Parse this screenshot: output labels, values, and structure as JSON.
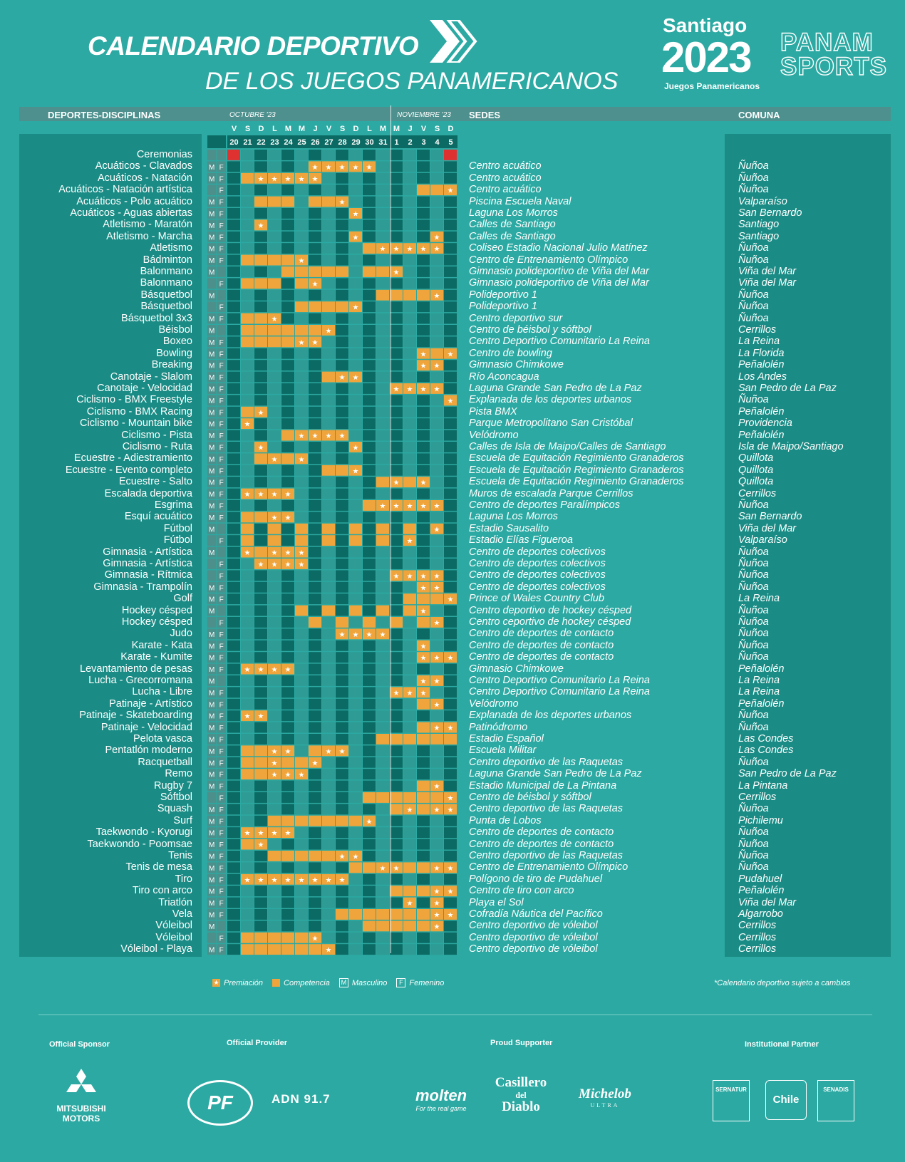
{
  "title": {
    "line1": "CALENDARIO DEPORTIVO",
    "line2": "DE LOS JUEGOS PANAMERICANOS"
  },
  "brand": {
    "city": "Santiago",
    "year": "2023",
    "subtitle": "Juegos Panamericanos",
    "partner_line1": "PANAM",
    "partner_line2": "SPORTS"
  },
  "header": {
    "sports": "DEPORTES-DISCIPLINAS",
    "oct": "OCTUBRE '23",
    "nov": "NOVIEMBRE '23",
    "venues": "SEDES",
    "commune": "COMUNA"
  },
  "days": [
    "V",
    "S",
    "D",
    "L",
    "M",
    "M",
    "J",
    "V",
    "S",
    "D",
    "L",
    "M",
    "M",
    "J",
    "V",
    "S",
    "D"
  ],
  "dates": [
    "20",
    "21",
    "22",
    "23",
    "24",
    "25",
    "26",
    "27",
    "28",
    "29",
    "30",
    "31",
    "1",
    "2",
    "3",
    "4",
    "5"
  ],
  "colors": {
    "background": "#2ba9a2",
    "dark": "#0b6a63",
    "light": "#2e9c95",
    "competition": "#f0a43c",
    "ceremony": "#e03131"
  },
  "rows": [
    {
      "sport": "Ceremonias",
      "g": "",
      "venue": "",
      "commune": "",
      "c": "00000000000000000",
      "ceremony": [
        0,
        16
      ]
    },
    {
      "sport": "Acuáticos - Clavados",
      "g": "MF",
      "venue": "Centro acuático",
      "commune": "Ñuñoa",
      "c": "00000022222000000"
    },
    {
      "sport": "Acuáticos - Natación",
      "g": "MF",
      "venue": "Centro acuático",
      "commune": "Ñuñoa",
      "c": "01222220000000000"
    },
    {
      "sport": "Acuáticos - Natación artística",
      "g": "F",
      "venue": "Centro acuático",
      "commune": "Ñuñoa",
      "c": "00000000000000112"
    },
    {
      "sport": "Acuáticos - Polo acuático",
      "g": "MF",
      "venue": "Piscina Escuela Naval",
      "commune": "Valparaíso",
      "c": "00111011200000000"
    },
    {
      "sport": "Acuáticos - Aguas abiertas",
      "g": "MF",
      "venue": "Laguna Los Morros",
      "commune": "San Bernardo",
      "c": "00000000020000000"
    },
    {
      "sport": "Atletismo - Maratón",
      "g": "MF",
      "venue": "Calles de Santiago",
      "commune": "Santiago",
      "c": "00200000000000000"
    },
    {
      "sport": "Atletismo - Marcha",
      "g": "MF",
      "venue": "Calles de Santiago",
      "commune": "Santiago",
      "c": "00000000020000020"
    },
    {
      "sport": "Atletismo",
      "g": "MF",
      "venue": "Coliseo Estadio Nacional Julio Matínez",
      "commune": "Ñuñoa",
      "c": "00000000001222220"
    },
    {
      "sport": "Bádminton",
      "g": "MF",
      "venue": "Centro de Entrenamiento Olímpico",
      "commune": "Ñuñoa",
      "c": "01111200000000000"
    },
    {
      "sport": "Balonmano",
      "g": "M",
      "venue": "Gimnasio polideportivo de Viña del Mar",
      "commune": "Viña del Mar",
      "c": "00001111101120000"
    },
    {
      "sport": "Balonmano",
      "g": "F",
      "venue": "Gimnasio polideportivo de Viña del Mar",
      "commune": "Viña del Mar",
      "c": "01110120000000000"
    },
    {
      "sport": "Básquetbol",
      "g": "M",
      "venue": "Polideportivo 1",
      "commune": "Ñuñoa",
      "c": "00000000000111120"
    },
    {
      "sport": "Básquetbol",
      "g": "F",
      "venue": "Polideportivo 1",
      "commune": "Ñuñoa",
      "c": "00000111120000000"
    },
    {
      "sport": "Básquetbol 3x3",
      "g": "MF",
      "venue": "Centro deportivo sur",
      "commune": "Ñuñoa",
      "c": "01120000000000000"
    },
    {
      "sport": "Béisbol",
      "g": "M",
      "venue": "Centro de béisbol y sóftbol",
      "commune": "Cerrillos",
      "c": "01111112000000000"
    },
    {
      "sport": "Boxeo",
      "g": "MF",
      "venue": "Centro Deportivo Comunitario La Reina",
      "commune": "La Reina",
      "c": "01111220000000000"
    },
    {
      "sport": "Bowling",
      "g": "MF",
      "venue": "Centro de bowling",
      "commune": "La Florida",
      "c": "00000000000000212"
    },
    {
      "sport": "Breaking",
      "g": "MF",
      "venue": "Gimnasio Chimkowe",
      "commune": "Peñalolén",
      "c": "00000000000000220"
    },
    {
      "sport": "Canotaje - Slalom",
      "g": "MF",
      "venue": "Río Aconcagua",
      "commune": "Los Andes",
      "c": "00000001220000000"
    },
    {
      "sport": "Canotaje - Velocidad",
      "g": "MF",
      "venue": "Laguna Grande San Pedro de La Paz",
      "commune": "San Pedro de La Paz",
      "c": "00000000000022220"
    },
    {
      "sport": "Ciclismo - BMX Freestyle",
      "g": "MF",
      "venue": "Explanada de los deportes urbanos",
      "commune": "Ñuñoa",
      "c": "00000000000000002"
    },
    {
      "sport": "Ciclismo - BMX Racing",
      "g": "MF",
      "venue": "Pista BMX",
      "commune": "Peñalolén",
      "c": "01200000000000000"
    },
    {
      "sport": "Ciclismo - Mountain bike",
      "g": "MF",
      "venue": "Parque Metropolitano San Cristóbal",
      "commune": "Providencia",
      "c": "02000000000000000"
    },
    {
      "sport": "Ciclismo - Pista",
      "g": "MF",
      "venue": "Velódromo",
      "commune": "Peñalolén",
      "c": "00001222200000000"
    },
    {
      "sport": "Ciclismo - Ruta",
      "g": "MF",
      "venue": "Calles de Isla de Maipo/Calles de Santiago",
      "commune": "Isla de Maipo/Santiago",
      "c": "00200000020000000"
    },
    {
      "sport": "Ecuestre - Adiestramiento",
      "g": "MF",
      "venue": "Escuela de Equitación Regimiento Granaderos",
      "commune": "Quillota",
      "c": "00121200000000000"
    },
    {
      "sport": "Ecuestre - Evento completo",
      "g": "MF",
      "venue": "Escuela de Equitación Regimiento Granaderos",
      "commune": "Quillota",
      "c": "00000001120000000"
    },
    {
      "sport": "Ecuestre - Salto",
      "g": "MF",
      "venue": "Escuela de Equitación Regimiento Granaderos",
      "commune": "Quillota",
      "c": "00000000000121200"
    },
    {
      "sport": "Escalada deportiva",
      "g": "MF",
      "venue": "Muros de escalada Parque Cerrillos",
      "commune": "Cerrillos",
      "c": "02222000000000000"
    },
    {
      "sport": "Esgrima",
      "g": "MF",
      "venue": "Centro de deportes Paralímpicos",
      "commune": "Ñuñoa",
      "c": "00000000001222220"
    },
    {
      "sport": "Esquí acuático",
      "g": "MF",
      "venue": "Laguna Los Morros",
      "commune": "San Bernardo",
      "c": "01122000000000000"
    },
    {
      "sport": "Fútbol",
      "g": "M",
      "venue": "Estadio Sausalito",
      "commune": "Viña del Mar",
      "c": "01010101010101020"
    },
    {
      "sport": "Fútbol",
      "g": "F",
      "venue": "Estadio Elías Figueroa",
      "commune": "Valparaíso",
      "c": "01010101010102000"
    },
    {
      "sport": "Gimnasia - Artística",
      "g": "M",
      "venue": "Centro de deportes colectivos",
      "commune": "Ñuñoa",
      "c": "02122200000000000"
    },
    {
      "sport": "Gimnasia - Artística",
      "g": "F",
      "venue": "Centro de deportes colectivos",
      "commune": "Ñuñoa",
      "c": "00222200000000000"
    },
    {
      "sport": "Gimnasia - Rítmica",
      "g": "F",
      "venue": "Centro de deportes colectivos",
      "commune": "Ñuñoa",
      "c": "00000000000022220"
    },
    {
      "sport": "Gimnasia - Trampolín",
      "g": "MF",
      "venue": "Centro de deportes colectivos",
      "commune": "Ñuñoa",
      "c": "00000000000000220"
    },
    {
      "sport": "Golf",
      "g": "MF",
      "venue": "Prince of Wales Country Club",
      "commune": "La Reina",
      "c": "00000000000001112"
    },
    {
      "sport": "Hockey césped",
      "g": "M",
      "venue": "Centro deportivo de hockey césped",
      "commune": "Ñuñoa",
      "c": "00000101010101200"
    },
    {
      "sport": "Hockey césped",
      "g": "F",
      "venue": "Centro ceportivo de hockey césped",
      "commune": "Ñuñoa",
      "c": "00000010101010120"
    },
    {
      "sport": "Judo",
      "g": "MF",
      "venue": "Centro de deportes de contacto",
      "commune": "Ñuñoa",
      "c": "00000000222200000"
    },
    {
      "sport": "Karate - Kata",
      "g": "MF",
      "venue": "Centro de deportes de contacto",
      "commune": "Ñuñoa",
      "c": "00000000000000200"
    },
    {
      "sport": "Karate - Kumite",
      "g": "MF",
      "venue": "Centro de deportes de contacto",
      "commune": "Ñuñoa",
      "c": "00000000000000222"
    },
    {
      "sport": "Levantamiento de pesas",
      "g": "MF",
      "venue": "Gimnasio Chimkowe",
      "commune": "Peñalolén",
      "c": "02222000000000000"
    },
    {
      "sport": "Lucha - Grecorromana",
      "g": "M",
      "venue": "Centro Deportivo Comunitario La Reina",
      "commune": "La Reina",
      "c": "00000000000000220"
    },
    {
      "sport": "Lucha - Libre",
      "g": "MF",
      "venue": "Centro Deportivo Comunitario La Reina",
      "commune": "La Reina",
      "c": "00000000000022200"
    },
    {
      "sport": "Patinaje - Artístico",
      "g": "MF",
      "venue": "Velódromo",
      "commune": "Peñalolén",
      "c": "00000000000000120"
    },
    {
      "sport": "Patinaje - Skateboarding",
      "g": "MF",
      "venue": "Explanada de los deportes urbanos",
      "commune": "Ñuñoa",
      "c": "02200000000000000"
    },
    {
      "sport": "Patinaje - Velocidad",
      "g": "MF",
      "venue": "Patinódromo",
      "commune": "Ñuñoa",
      "c": "00000000000000122"
    },
    {
      "sport": "Pelota vasca",
      "g": "MF",
      "venue": "Estadio Español",
      "commune": "Las Condes",
      "c": "00000000000111111"
    },
    {
      "sport": "Pentatlón moderno",
      "g": "MF",
      "venue": "Escuela Militar",
      "commune": "Las Condes",
      "c": "01122012200000000"
    },
    {
      "sport": "Racquetball",
      "g": "MF",
      "venue": "Centro deportivo de las Raquetas",
      "commune": "Ñuñoa",
      "c": "01121120000000000"
    },
    {
      "sport": "Remo",
      "g": "MF",
      "venue": "Laguna Grande San Pedro de La Paz",
      "commune": "San Pedro de La Paz",
      "c": "01122200000000000"
    },
    {
      "sport": "Rugby 7",
      "g": "MF",
      "venue": "Estadio Municipal de La Pintana",
      "commune": "La Pintana",
      "c": "00000000000000120"
    },
    {
      "sport": "Sóftbol",
      "g": "F",
      "venue": "Centro de béisbol y sóftbol",
      "commune": "Cerrillos",
      "c": "00000000001111112"
    },
    {
      "sport": "Squash",
      "g": "MF",
      "venue": "Centro deportivo de las Raquetas",
      "commune": "Ñuñoa",
      "c": "00000000000012122"
    },
    {
      "sport": "Surf",
      "g": "MF",
      "venue": "Punta de Lobos",
      "commune": "Pichilemu",
      "c": "00011111112000000"
    },
    {
      "sport": "Taekwondo - Kyorugi",
      "g": "MF",
      "venue": "Centro de deportes de contacto",
      "commune": "Ñuñoa",
      "c": "02222000000000000"
    },
    {
      "sport": "Taekwondo - Poomsae",
      "g": "MF",
      "venue": "Centro de deportes de contacto",
      "commune": "Ñuñoa",
      "c": "01200000000000000"
    },
    {
      "sport": "Tenis",
      "g": "MF",
      "venue": "Centro deportivo de las Raquetas",
      "commune": "Ñuñoa",
      "c": "00011111220000000"
    },
    {
      "sport": "Tenis de mesa",
      "g": "MF",
      "venue": "Centro de Entrenamiento Olímpico",
      "commune": "Ñuñoa",
      "c": "00000000011221122"
    },
    {
      "sport": "Tiro",
      "g": "MF",
      "venue": "Polígono de tiro de Pudahuel",
      "commune": "Pudahuel",
      "c": "02222222200000000"
    },
    {
      "sport": "Tiro con arco",
      "g": "MF",
      "venue": "Centro de tiro con arco",
      "commune": "Peñalolén",
      "c": "00000000000011122"
    },
    {
      "sport": "Triatlón",
      "g": "MF",
      "venue": "Playa el Sol",
      "commune": "Viña del Mar",
      "c": "00000000000002020"
    },
    {
      "sport": "Vela",
      "g": "MF",
      "venue": "Cofradía Náutica del Pacífico",
      "commune": "Algarrobo",
      "c": "00000000111111122"
    },
    {
      "sport": "Vóleibol",
      "g": "M",
      "venue": "Centro deportivo de vóleibol",
      "commune": "Cerrillos",
      "c": "00000000001111120"
    },
    {
      "sport": "Vóleibol",
      "g": "F",
      "venue": "Centro deportivo de vóleibol",
      "commune": "Cerrillos",
      "c": "01111120000000000"
    },
    {
      "sport": "Vóleibol - Playa",
      "g": "MF",
      "venue": "Centro deportivo de vóleibol",
      "commune": "Cerrillos",
      "c": "01111112000000000"
    }
  ],
  "legend": {
    "award": "Premiación",
    "competition": "Competencia",
    "male_code": "M",
    "male": "Masculino",
    "female_code": "F",
    "female": "Femenino"
  },
  "disclaimer": "*Calendario deportivo sujeto a cambios",
  "footer": {
    "sponsor": "Official Sponsor",
    "provider": "Official Provider",
    "supporter": "Proud Supporter",
    "institutional": "Institutional Partner",
    "mitsubishi1": "MITSUBISHI",
    "mitsubishi2": "MOTORS",
    "pf": "PF",
    "adn": "ADN 91.7",
    "molten": "molten",
    "molten_tag": "For the real game",
    "casillero1": "Casillero",
    "casillero2": "del",
    "casillero3": "Diablo",
    "michelob": "Michelob",
    "michelob_ultra": "ULTRA",
    "sernatur": "SERNATUR",
    "chile": "Chile",
    "senado": "SENADIS"
  }
}
